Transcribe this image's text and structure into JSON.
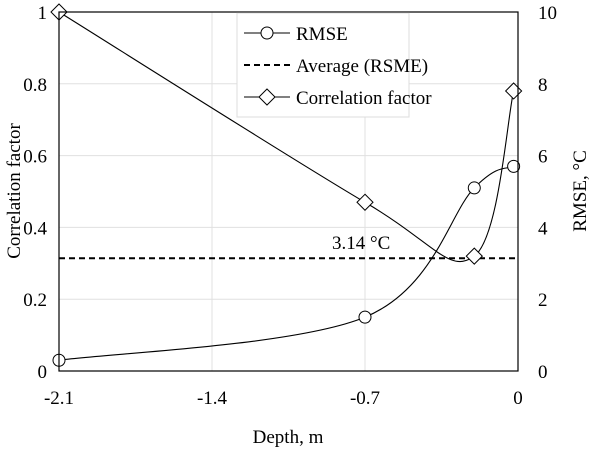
{
  "chart_data": {
    "type": "line",
    "xlabel": "Depth, m",
    "ylabel_left": "Correlation factor",
    "ylabel_right": "RMSE, °C",
    "xlim": [
      -2.1,
      0
    ],
    "ylim_left": [
      0,
      1
    ],
    "ylim_right": [
      0,
      10
    ],
    "x_ticks": [
      "-2.1",
      "-1.4",
      "-0.7",
      "0"
    ],
    "y_left_ticks": [
      "0",
      "0.2",
      "0.4",
      "0.6",
      "0.8",
      "1"
    ],
    "y_right_ticks": [
      "0",
      "2",
      "4",
      "6",
      "8",
      "10"
    ],
    "grid": true,
    "legend_position": "top-right",
    "series": [
      {
        "name": "RMSE",
        "axis": "right",
        "marker": "circle",
        "x": [
          -2.1,
          -0.7,
          -0.2,
          -0.02
        ],
        "y": [
          0.3,
          1.5,
          5.1,
          5.7
        ]
      },
      {
        "name": "Average (RSME)",
        "axis": "right",
        "style": "dashed",
        "x": [
          -2.1,
          0
        ],
        "y": [
          3.14,
          3.14
        ]
      },
      {
        "name": "Correlation factor",
        "axis": "left",
        "marker": "diamond",
        "x": [
          -2.1,
          -0.7,
          -0.2,
          -0.02
        ],
        "y": [
          1.0,
          0.47,
          0.32,
          0.78
        ]
      }
    ],
    "annotations": [
      "3.14 °C"
    ]
  }
}
